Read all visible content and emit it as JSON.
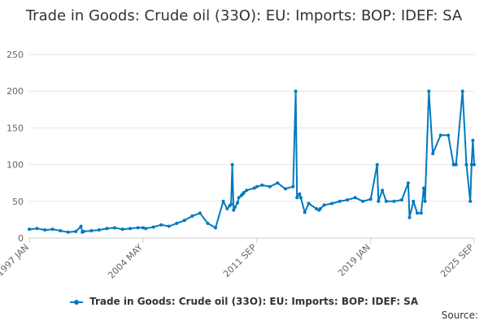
{
  "chart_data": {
    "type": "line",
    "title": "Trade in Goods: Crude oil (33O): EU: Imports: BOP: IDEF: SA",
    "xlabel": "",
    "ylabel": "",
    "x_ticks": [
      "1997 JAN",
      "2004 MAY",
      "2011 SEP",
      "2019 JAN",
      "2025 SEP"
    ],
    "y_ticks": [
      "0",
      "50",
      "100",
      "150",
      "200",
      "250"
    ],
    "ylim": [
      0,
      250
    ],
    "grid": "horizontal",
    "legend_position": "bottom",
    "color": "#0079c0",
    "series": [
      {
        "name": "Trade in Goods: Crude oil (33O): EU: Imports: BOP: IDEF: SA",
        "x": [
          "1997 JAN",
          "1997 JUL",
          "1998 JAN",
          "1998 JUL",
          "1999 JAN",
          "1999 JUL",
          "2000 JAN",
          "2000 MAY",
          "2000 JUN",
          "2000 JUL",
          "2001 JAN",
          "2001 JUL",
          "2002 JAN",
          "2002 JUL",
          "2003 JAN",
          "2003 JUL",
          "2004 JAN",
          "2004 MAY",
          "2004 JUL",
          "2005 JAN",
          "2005 JUL",
          "2006 JAN",
          "2006 JUL",
          "2007 JAN",
          "2007 JUL",
          "2008 JAN",
          "2008 JUL",
          "2009 JAN",
          "2009 JUL",
          "2009 OCT",
          "2009 DEC",
          "2010 JAN",
          "2010 FEB",
          "2010 MAR",
          "2010 APR",
          "2010 JUN",
          "2010 JUL",
          "2010 SEP",
          "2010 OCT",
          "2010 NOV",
          "2011 JAN",
          "2011 JUL",
          "2011 SEP",
          "2012 JAN",
          "2012 JUL",
          "2013 JAN",
          "2013 JUL",
          "2014 JAN",
          "2014 MAR",
          "2014 APR",
          "2014 JUN",
          "2014 JUL",
          "2014 OCT",
          "2015 JAN",
          "2015 JUL",
          "2015 SEP",
          "2015 OCT",
          "2016 JAN",
          "2016 JUL",
          "2017 JAN",
          "2017 JUL",
          "2018 JAN",
          "2018 JUL",
          "2019 JAN",
          "2019 JUN",
          "2019 JUL",
          "2019 OCT",
          "2020 JAN",
          "2020 JUL",
          "2021 JAN",
          "2021 JUN",
          "2021 JUL",
          "2021 OCT",
          "2022 JAN",
          "2022 APR",
          "2022 JUN",
          "2022 JUL",
          "2022 OCT",
          "2023 JAN",
          "2023 JUL",
          "2024 JAN",
          "2024 MAY",
          "2024 JUN",
          "2024 JUL",
          "2024 DEC",
          "2025 MAR",
          "2025 JUN",
          "2025 JUL",
          "2025 AUG",
          "2025 SEP"
        ],
        "values": [
          12,
          13,
          11,
          12,
          10,
          8,
          9,
          16,
          8,
          9,
          10,
          11,
          13,
          14,
          12,
          13,
          14,
          14,
          13,
          15,
          18,
          16,
          20,
          24,
          30,
          34,
          20,
          14,
          50,
          40,
          44,
          46,
          100,
          38,
          42,
          48,
          55,
          58,
          60,
          62,
          65,
          68,
          70,
          72,
          70,
          75,
          67,
          70,
          200,
          55,
          60,
          55,
          35,
          47,
          40,
          38,
          40,
          45,
          47,
          50,
          52,
          55,
          50,
          53,
          100,
          50,
          65,
          50,
          50,
          52,
          75,
          28,
          50,
          34,
          34,
          68,
          50,
          200,
          115,
          140,
          140,
          100,
          100,
          100,
          200,
          100,
          50,
          100,
          133,
          100
        ]
      }
    ]
  },
  "credits": "Source:"
}
